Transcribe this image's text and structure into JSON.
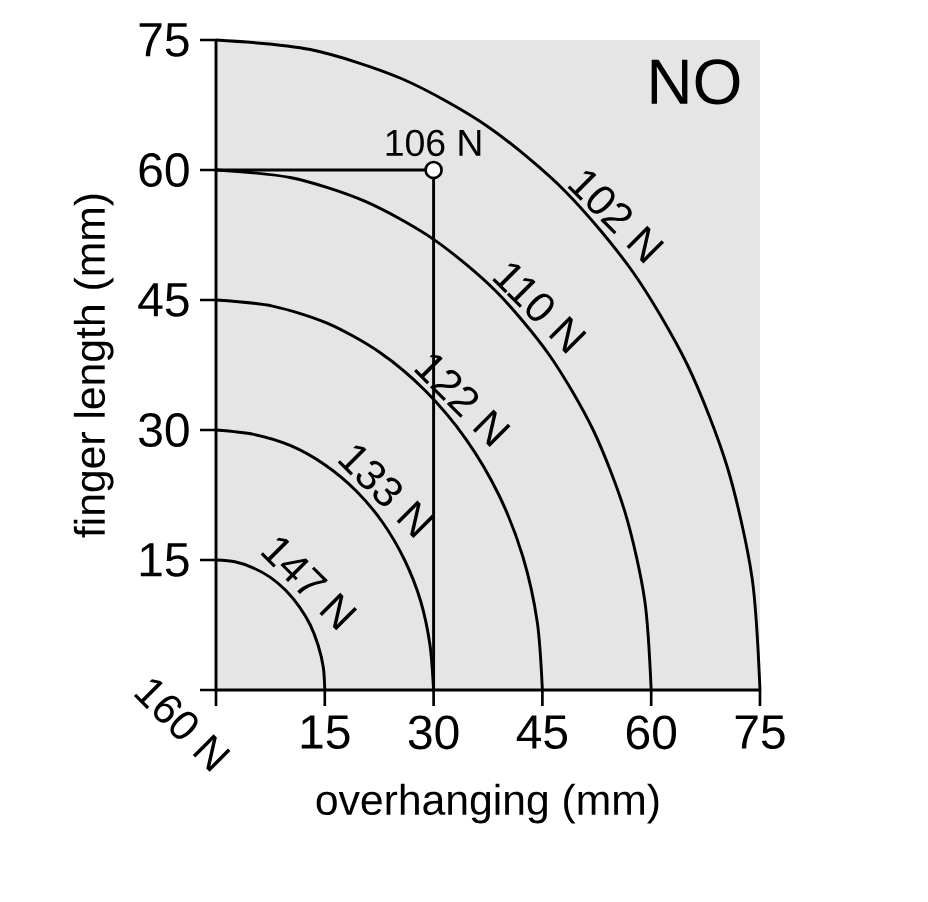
{
  "chart_data": {
    "type": "line",
    "xlabel": "overhanging  (mm)",
    "ylabel": "finger length  (mm)",
    "xlim": [
      0,
      75
    ],
    "ylim": [
      0,
      75
    ],
    "xticks": [
      {
        "value": 0,
        "label": null
      },
      15,
      30,
      45,
      60,
      75
    ],
    "yticks": [
      {
        "value": 0,
        "label": null
      },
      15,
      30,
      45,
      60,
      75
    ],
    "grid": false,
    "series": [
      {
        "name": "147 N",
        "color": "#000000",
        "x": [
          15,
          14.8,
          14.1,
          13,
          11.5,
          9.6,
          7.5,
          5.1,
          2.6,
          0
        ],
        "values": [
          0,
          2.6,
          5.1,
          7.5,
          9.6,
          11.5,
          13,
          14.1,
          14.8,
          15
        ]
      },
      {
        "name": "133 N",
        "color": "#000000",
        "x": [
          30,
          29.5,
          28.2,
          26,
          23,
          19.3,
          15,
          10.3,
          5.2,
          0
        ],
        "values": [
          0,
          5.2,
          10.3,
          15,
          19.3,
          23,
          26,
          28.2,
          29.5,
          30
        ]
      },
      {
        "name": "122 N",
        "color": "#000000",
        "x": [
          45,
          44.3,
          42.3,
          39,
          34.5,
          28.9,
          22.5,
          15.4,
          7.8,
          0
        ],
        "values": [
          0,
          7.8,
          15.4,
          22.5,
          28.9,
          34.5,
          39,
          42.3,
          44.3,
          45
        ]
      },
      {
        "name": "110 N",
        "color": "#000000",
        "x": [
          60,
          59.1,
          56.4,
          52,
          46,
          38.6,
          30,
          20.5,
          10.4,
          0
        ],
        "values": [
          0,
          10.4,
          20.5,
          30,
          38.6,
          46,
          52,
          56.4,
          59.1,
          60
        ]
      },
      {
        "name": "102 N",
        "color": "#000000",
        "x": [
          75,
          73.9,
          70.5,
          65,
          57.5,
          48.2,
          37.5,
          25.7,
          13,
          0
        ],
        "values": [
          0,
          13,
          25.7,
          37.5,
          48.2,
          57.5,
          65,
          70.5,
          73.9,
          75
        ]
      },
      {
        "color": "#000000",
        "x": [
          0,
          30
        ],
        "values": [
          60,
          60
        ]
      },
      {
        "color": "#000000",
        "x": [
          30,
          30
        ],
        "values": [
          60,
          0
        ]
      },
      {
        "type": "scatter",
        "marker": "circle",
        "color": "#000000",
        "x": [
          30
        ],
        "values": [
          60
        ]
      }
    ],
    "annotations": [
      {
        "text": "106 N",
        "x": 30,
        "y": 60
      },
      "160 N",
      "NO"
    ]
  }
}
